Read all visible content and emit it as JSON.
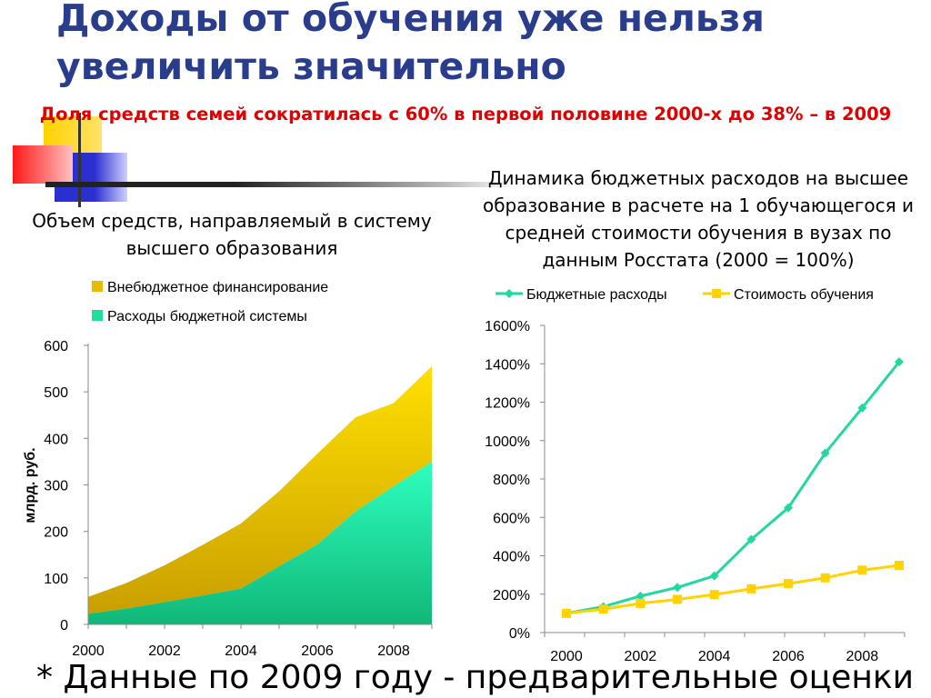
{
  "slide": {
    "title_line1": "Доходы от обучения уже нельзя",
    "title_line2": "увеличить значительно",
    "subtitle": "Доля средств семей сократилась с 60% в первой половине 2000-х до 38% – в 2009",
    "left_caption": "Объем средств, направляемый в систему высшего образования",
    "right_caption": "Динамика бюджетных расходов на высшее образование в расчете на 1 обучающегося и средней стоимости обучения в вузах по данным Росстата (2000 = 100%)",
    "footnote": "* Данные по 2009 году - предварительные оценки"
  },
  "colors": {
    "title": "#2a3c8c",
    "subtitle": "#e00000",
    "deco_yellow": "#ffd200",
    "deco_blue": "#2c2fd0",
    "deco_red": "#ff2020"
  },
  "chart_data": [
    {
      "type": "area",
      "stacked": true,
      "x": [
        2000,
        2001,
        2002,
        2003,
        2004,
        2005,
        2006,
        2007,
        2008,
        2009
      ],
      "series": [
        {
          "name": "Расходы бюджетной системы",
          "color": "#1ee09a",
          "values": [
            23,
            34,
            48,
            62,
            77,
            125,
            172,
            243,
            297,
            350
          ]
        },
        {
          "name": "Внебюджетное финансирование",
          "color": "#f2c500",
          "values": [
            36,
            55,
            79,
            109,
            140,
            161,
            195,
            202,
            179,
            205
          ]
        }
      ],
      "ylabel": "млрд. руб.",
      "ylim": [
        0,
        600
      ],
      "yticks": [
        "0",
        "100",
        "200",
        "300",
        "400",
        "500",
        "600"
      ],
      "xticks": [
        "2000",
        "2002",
        "2004",
        "2006",
        "2008"
      ],
      "legend": "top",
      "grid": false
    },
    {
      "type": "line",
      "x": [
        2000,
        2001,
        2002,
        2003,
        2004,
        2005,
        2006,
        2007,
        2008,
        2009
      ],
      "series": [
        {
          "name": "Бюджетные расходы",
          "color": "#22d8a0",
          "marker": "diamond",
          "values": [
            100,
            135,
            190,
            235,
            295,
            485,
            650,
            935,
            1170,
            1410
          ]
        },
        {
          "name": "Стоимость обучения",
          "color": "#ffd200",
          "marker": "square",
          "values": [
            100,
            122,
            152,
            173,
            198,
            228,
            255,
            285,
            325,
            350
          ]
        }
      ],
      "ylim": [
        0,
        1600
      ],
      "yticks": [
        "0%",
        "200%",
        "400%",
        "600%",
        "800%",
        "1000%",
        "1200%",
        "1400%",
        "1600%"
      ],
      "xticks": [
        "2000",
        "2002",
        "2004",
        "2006",
        "2008"
      ],
      "legend": "top",
      "grid": false
    }
  ]
}
